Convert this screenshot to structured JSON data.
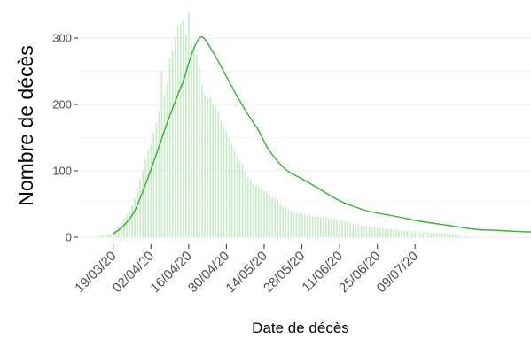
{
  "chart_data": {
    "type": "bar",
    "xlabel": "Date de décès",
    "ylabel": "Nombre de décès",
    "ylim": [
      0,
      345
    ],
    "y_ticks": [
      0,
      100,
      200,
      300
    ],
    "x_start": "13/03/20",
    "x_ticks": [
      "19/03/20",
      "02/04/20",
      "16/04/20",
      "30/04/20",
      "14/05/20",
      "28/05/20",
      "11/06/20",
      "25/06/20",
      "09/07/20"
    ],
    "grid": true,
    "legend": "none",
    "colors": {
      "bars": "#c8ebc8",
      "line": "#2eb82e",
      "grid": "#ebebeb"
    },
    "series": [
      {
        "type": "bar",
        "values": [
          1,
          1,
          2,
          2,
          4,
          5,
          7,
          11,
          16,
          22,
          28,
          34,
          40,
          48,
          58,
          75,
          88,
          100,
          118,
          130,
          140,
          158,
          172,
          190,
          250,
          215,
          232,
          270,
          280,
          300,
          318,
          322,
          328,
          305,
          340,
          290,
          290,
          275,
          255,
          230,
          215,
          210,
          210,
          200,
          195,
          190,
          175,
          165,
          160,
          150,
          140,
          130,
          120,
          115,
          110,
          98,
          90,
          85,
          80,
          78,
          75,
          72,
          70,
          68,
          65,
          60,
          58,
          55,
          50,
          47,
          45,
          42,
          40,
          38,
          37,
          36,
          35,
          34,
          33,
          32,
          32,
          31,
          31,
          30,
          30,
          29,
          29,
          28,
          28,
          27,
          26,
          25,
          24,
          23,
          22,
          21,
          20,
          19,
          18,
          18,
          17,
          16,
          15,
          15,
          14,
          14,
          13,
          13,
          12,
          12,
          11,
          11,
          10,
          10,
          10,
          9,
          9,
          9,
          9,
          8,
          8,
          8,
          8,
          7,
          7,
          7,
          7,
          6,
          6,
          6,
          6,
          5,
          5,
          4,
          3,
          2,
          1,
          1
        ]
      },
      {
        "type": "line",
        "x": [
          6,
          10,
          14,
          18,
          22,
          26,
          30,
          32,
          34,
          36,
          38,
          40,
          44,
          48,
          52,
          56,
          60,
          64,
          70,
          76,
          82,
          90,
          100,
          110,
          120,
          130,
          140,
          150,
          160,
          170,
          180,
          188
        ],
        "values": [
          5,
          18,
          40,
          80,
          125,
          172,
          215,
          235,
          262,
          285,
          300,
          298,
          272,
          242,
          212,
          185,
          160,
          130,
          102,
          88,
          74,
          55,
          40,
          32,
          24,
          18,
          12,
          10,
          8,
          7,
          6,
          4
        ]
      }
    ]
  }
}
